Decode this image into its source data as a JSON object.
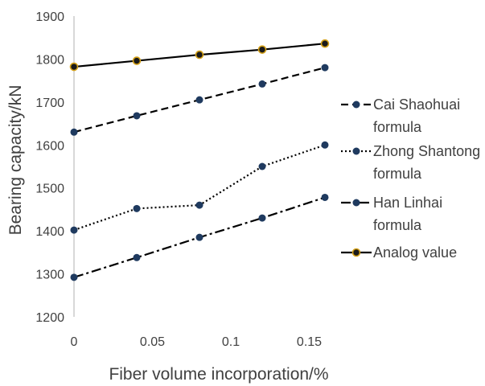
{
  "chart_data": {
    "type": "line",
    "title": "",
    "xlabel": "Fiber volume incorporation/%",
    "ylabel": "Bearing capacity/kN",
    "x": [
      0,
      0.04,
      0.08,
      0.12,
      0.16
    ],
    "xticks": [
      "0",
      "0.05",
      "0.1",
      "0.15"
    ],
    "xtick_values": [
      0,
      0.05,
      0.1,
      0.15
    ],
    "xlim": [
      0,
      0.16
    ],
    "yticks": [
      "1200",
      "1300",
      "1400",
      "1500",
      "1600",
      "1700",
      "1800",
      "1900"
    ],
    "ytick_values": [
      1200,
      1300,
      1400,
      1500,
      1600,
      1700,
      1800,
      1900
    ],
    "ylim": [
      1200,
      1900
    ],
    "grid": false,
    "legend_position": "right",
    "series": [
      {
        "name_lines": [
          "Cai Shaohuai",
          "formula"
        ],
        "values": [
          1630,
          1668,
          1705,
          1742,
          1780
        ],
        "color": "#000000",
        "marker_fill": "#1f3a5f",
        "dash": "dashed"
      },
      {
        "name_lines": [
          "Zhong Shantong",
          "formula"
        ],
        "values": [
          1402,
          1452,
          1460,
          1550,
          1600
        ],
        "color": "#000000",
        "marker_fill": "#1f3a5f",
        "dash": "dotted"
      },
      {
        "name_lines": [
          "Han Linhai",
          "formula"
        ],
        "values": [
          1292,
          1338,
          1385,
          1430,
          1478
        ],
        "color": "#000000",
        "marker_fill": "#1f3a5f",
        "dash": "dashdot"
      },
      {
        "name_lines": [
          "Analog value"
        ],
        "values": [
          1782,
          1796,
          1810,
          1822,
          1836
        ],
        "color": "#000000",
        "marker_fill": "#1a1a1a",
        "marker_stroke": "#d4a017",
        "dash": "solid"
      }
    ]
  }
}
